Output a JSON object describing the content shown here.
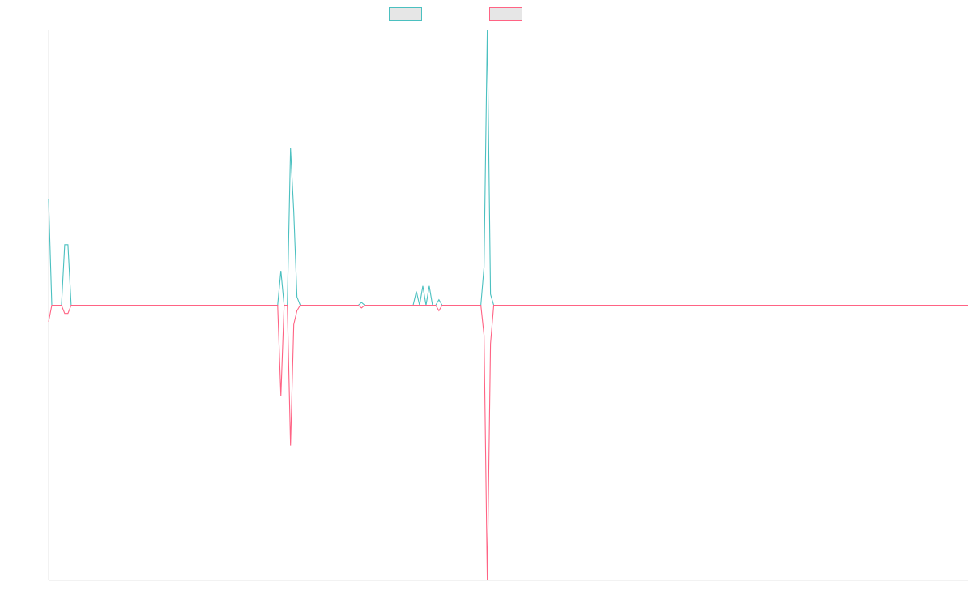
{
  "chart_data": {
    "type": "line",
    "title": "",
    "xlabel": "",
    "ylabel": "",
    "x_count": 286,
    "ylim": [
      -1.0,
      1.0
    ],
    "grid": false,
    "legend_position": "top-center",
    "series": [
      {
        "name": "",
        "color": "#4bc0c0",
        "points": [
          [
            0,
            0.385
          ],
          [
            1,
            0
          ],
          [
            4,
            0
          ],
          [
            5,
            0.22
          ],
          [
            6,
            0.22
          ],
          [
            7,
            0
          ],
          [
            71,
            0
          ],
          [
            72,
            0.125
          ],
          [
            73,
            0
          ],
          [
            74,
            0
          ],
          [
            75,
            0.57
          ],
          [
            76,
            0.34
          ],
          [
            77,
            0.03
          ],
          [
            78,
            0
          ],
          [
            96,
            0
          ],
          [
            97,
            0.01
          ],
          [
            98,
            0
          ],
          [
            113,
            0
          ],
          [
            114,
            0.05
          ],
          [
            115,
            0
          ],
          [
            116,
            0.07
          ],
          [
            117,
            0
          ],
          [
            118,
            0.07
          ],
          [
            119,
            0
          ],
          [
            120,
            0
          ],
          [
            121,
            0.02
          ],
          [
            122,
            0
          ],
          [
            134,
            0
          ],
          [
            135,
            0.14
          ],
          [
            136,
            1.0
          ],
          [
            137,
            0.04
          ],
          [
            138,
            0
          ],
          [
            285,
            0
          ]
        ]
      },
      {
        "name": "",
        "color": "#ff6384",
        "points": [
          [
            0,
            -0.06
          ],
          [
            1,
            0
          ],
          [
            4,
            0
          ],
          [
            5,
            -0.03
          ],
          [
            6,
            -0.03
          ],
          [
            7,
            0
          ],
          [
            71,
            0
          ],
          [
            72,
            -0.33
          ],
          [
            73,
            0
          ],
          [
            74,
            0
          ],
          [
            75,
            -0.51
          ],
          [
            76,
            -0.07
          ],
          [
            77,
            -0.02
          ],
          [
            78,
            0
          ],
          [
            96,
            0
          ],
          [
            97,
            -0.01
          ],
          [
            98,
            0
          ],
          [
            120,
            0
          ],
          [
            121,
            -0.02
          ],
          [
            122,
            0
          ],
          [
            134,
            0
          ],
          [
            135,
            -0.11
          ],
          [
            136,
            -1.0
          ],
          [
            137,
            -0.14
          ],
          [
            138,
            0
          ],
          [
            285,
            0
          ]
        ]
      }
    ]
  }
}
